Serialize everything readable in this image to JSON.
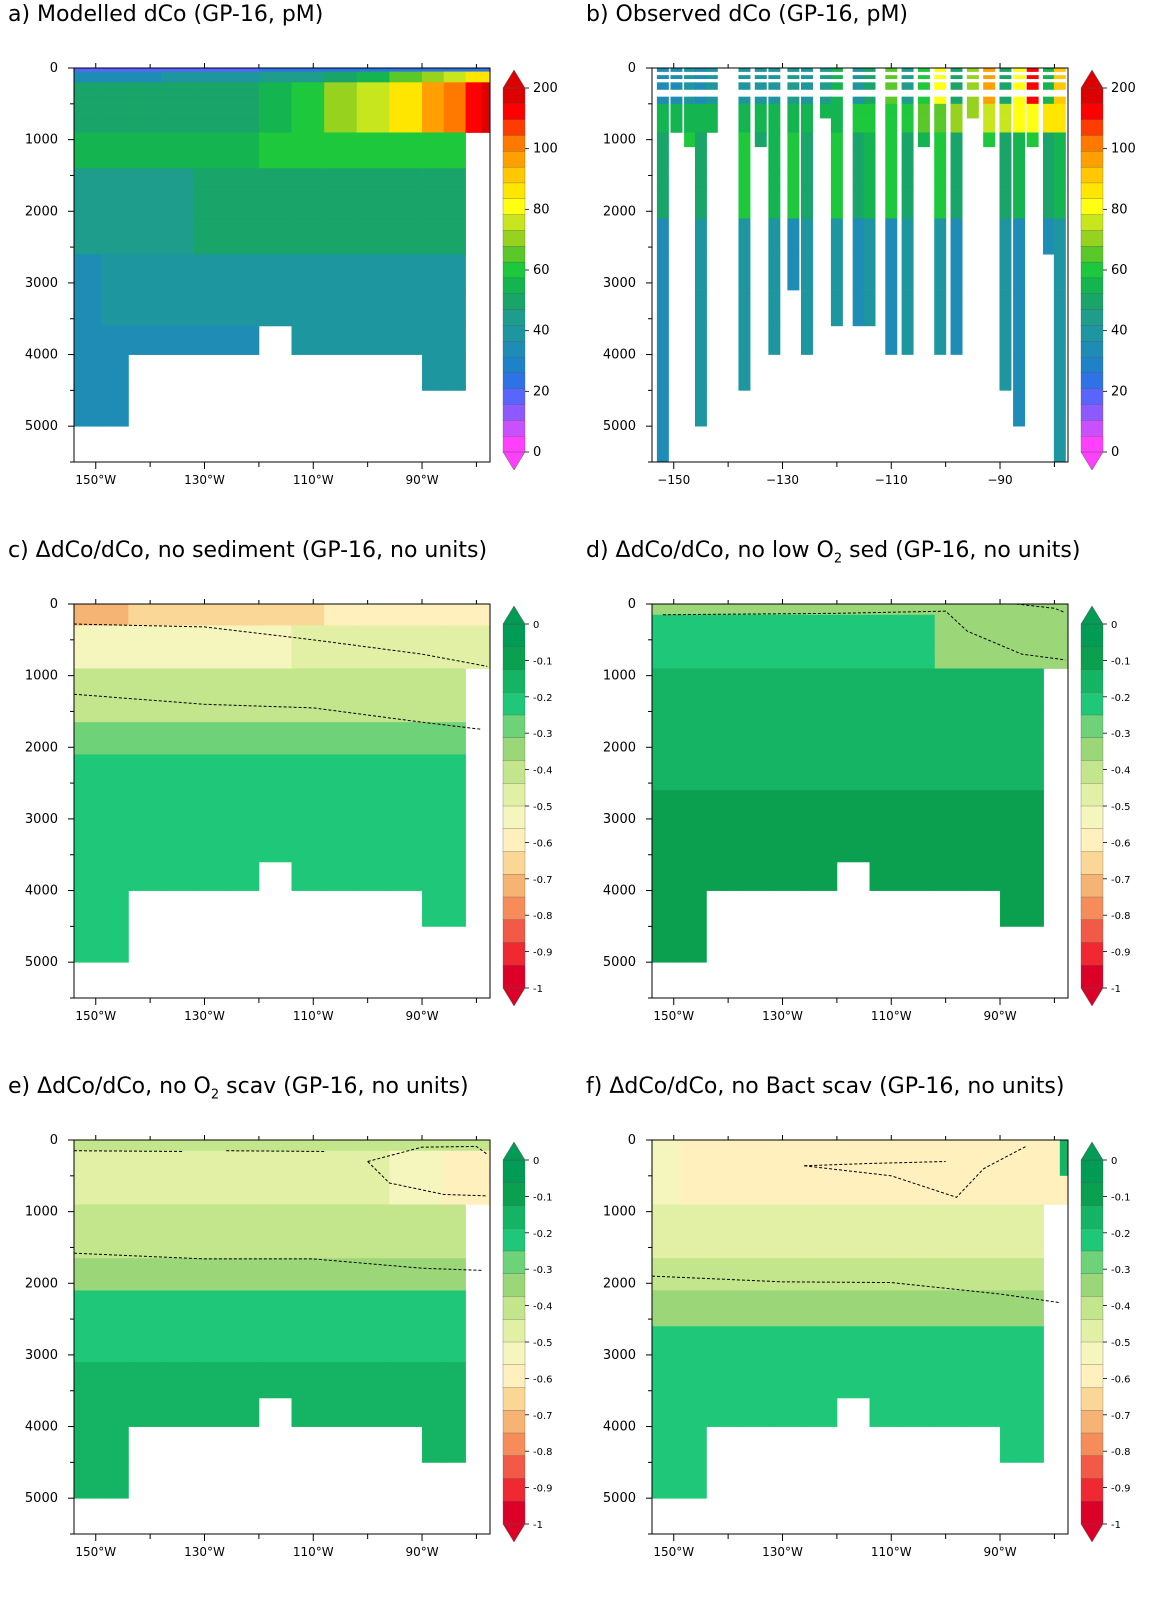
{
  "chart_data": [
    {
      "id": "a",
      "type": "heatmap",
      "title_prefix": "a) Modelled dCo (GP-16, pM)",
      "title_sub": "",
      "title_suffix": "",
      "x_ticks": [
        "150°W",
        "130°W",
        "110°W",
        "90°W"
      ],
      "y_ticks": [
        "0",
        "1000",
        "2000",
        "3000",
        "4000",
        "5000"
      ],
      "colorbar": {
        "labels": [
          "200",
          "100",
          "80",
          "60",
          "40",
          "20",
          "0"
        ]
      },
      "field": "model_dco",
      "contours": []
    },
    {
      "id": "b",
      "type": "heatmap",
      "title_prefix": "b) Observed dCo (GP-16, pM)",
      "title_sub": "",
      "title_suffix": "",
      "x_ticks": [
        "−150",
        "−130",
        "−110",
        "−90"
      ],
      "y_ticks": [
        "0",
        "1000",
        "2000",
        "3000",
        "4000",
        "5000"
      ],
      "colorbar": {
        "labels": [
          "200",
          "100",
          "80",
          "60",
          "40",
          "20",
          "0"
        ]
      },
      "field": "observed_dco",
      "contours": []
    },
    {
      "id": "c",
      "type": "heatmap",
      "title_prefix": "c) ΔdCo/dCo, no sediment  (GP-16, no units)",
      "title_sub": "",
      "title_suffix": "",
      "x_ticks": [
        "150°W",
        "130°W",
        "110°W",
        "90°W"
      ],
      "y_ticks": [
        "0",
        "1000",
        "2000",
        "3000",
        "4000",
        "5000"
      ],
      "colorbar": {
        "labels": [
          "0",
          "-0.1",
          "-0.2",
          "-0.3",
          "-0.4",
          "-0.5",
          "-0.6",
          "-0.7",
          "-0.8",
          "-0.9",
          "-1"
        ]
      },
      "field": "no_sediment",
      "contours": []
    },
    {
      "id": "d",
      "type": "heatmap",
      "title_prefix": "d) ΔdCo/dCo, no low O",
      "title_sub": "2",
      "title_suffix": " sed  (GP-16, no units)",
      "x_ticks": [
        "150°W",
        "130°W",
        "110°W",
        "90°W"
      ],
      "y_ticks": [
        "0",
        "1000",
        "2000",
        "3000",
        "4000",
        "5000"
      ],
      "colorbar": {
        "labels": [
          "0",
          "-0.1",
          "-0.2",
          "-0.3",
          "-0.4",
          "-0.5",
          "-0.6",
          "-0.7",
          "-0.8",
          "-0.9",
          "-1"
        ]
      },
      "field": "no_lowO2_sed",
      "contours": []
    },
    {
      "id": "e",
      "type": "heatmap",
      "title_prefix": "e) ΔdCo/dCo, no O",
      "title_sub": "2",
      "title_suffix": " scav  (GP-16, no units)",
      "x_ticks": [
        "150°W",
        "130°W",
        "110°W",
        "90°W"
      ],
      "y_ticks": [
        "0",
        "1000",
        "2000",
        "3000",
        "4000",
        "5000"
      ],
      "colorbar": {
        "labels": [
          "0",
          "-0.1",
          "-0.2",
          "-0.3",
          "-0.4",
          "-0.5",
          "-0.6",
          "-0.7",
          "-0.8",
          "-0.9",
          "-1"
        ]
      },
      "field": "no_O2_scav",
      "contours": []
    },
    {
      "id": "f",
      "type": "heatmap",
      "title_prefix": "f) ΔdCo/dCo, no Bact scav  (GP-16, no units)",
      "title_sub": "",
      "title_suffix": "",
      "x_ticks": [
        "150°W",
        "130°W",
        "110°W",
        "90°W"
      ],
      "y_ticks": [
        "0",
        "1000",
        "2000",
        "3000",
        "4000",
        "5000"
      ],
      "colorbar": {
        "labels": [
          "0",
          "-0.1",
          "-0.2",
          "-0.3",
          "-0.4",
          "-0.5",
          "-0.6",
          "-0.7",
          "-0.8",
          "-0.9",
          "-1"
        ]
      },
      "field": "no_bact_scav",
      "contours": []
    }
  ],
  "colors": {
    "dco_scale": [
      "#ff40ff",
      "#c850ff",
      "#8c5aff",
      "#5a64ff",
      "#2d73e6",
      "#1e82c8",
      "#1e8cb4",
      "#1e96a0",
      "#1e9c8c",
      "#19a569",
      "#14b450",
      "#1ec83c",
      "#5ac828",
      "#96d21e",
      "#c8e61e",
      "#ffff14",
      "#ffe600",
      "#ffc800",
      "#ffa000",
      "#ff7800",
      "#ff3c00",
      "#ff0000",
      "#dc0000"
    ],
    "rel_scale": [
      "#dc0028",
      "#f02832",
      "#f05a46",
      "#f58c5a",
      "#f5b473",
      "#fad796",
      "#fff0be",
      "#f5f5be",
      "#e1f0a5",
      "#c3e68c",
      "#9bd778",
      "#6ed278",
      "#1ec878",
      "#14b464",
      "#0aa050",
      "#009b55"
    ]
  }
}
